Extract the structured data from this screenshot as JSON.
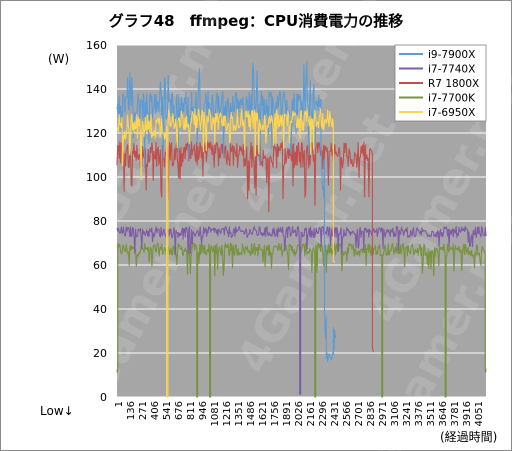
{
  "chart_data": {
    "type": "line",
    "title": "グラフ48　ffmpeg：CPU消費電力の推移",
    "ylabel": "(W)",
    "xlabel": "(経過時間)",
    "low_label": "Low↓",
    "ylim": [
      0,
      160
    ],
    "yticks": [
      0,
      20,
      40,
      60,
      80,
      100,
      120,
      140,
      160
    ],
    "x_tick_labels": [
      "1",
      "136",
      "271",
      "406",
      "541",
      "676",
      "811",
      "946",
      "1081",
      "1216",
      "1351",
      "1486",
      "1621",
      "1756",
      "1891",
      "2026",
      "2161",
      "2296",
      "2431",
      "2566",
      "2701",
      "2836",
      "2971",
      "3106",
      "3241",
      "3376",
      "3511",
      "3646",
      "3781",
      "3916",
      "4051"
    ],
    "x_range": [
      1,
      4160
    ],
    "grid": "horizontal",
    "legend_position": "top-right",
    "watermark": "4Gamer.net",
    "series": [
      {
        "name": "i9-7900X",
        "color": "#5b9bd5",
        "start": 1,
        "spike_x": [
          110,
          520,
          900,
          1560,
          2160
        ],
        "levels": [
          {
            "from": 1,
            "to": 2300,
            "mean": 132,
            "amp": 7
          },
          {
            "from": 2300,
            "to": 2340,
            "mean": 105,
            "amp": 15
          },
          {
            "from": 2340,
            "to": 2360,
            "mean": 40,
            "amp": 18
          },
          {
            "from": 2360,
            "to": 2440,
            "mean": 18,
            "amp": 2
          },
          {
            "from": 2440,
            "to": 2470,
            "mean": 26,
            "amp": 6
          }
        ]
      },
      {
        "name": "i7-7740X",
        "color": "#7e5ba6",
        "start": 1,
        "levels": [
          {
            "from": 1,
            "to": 2060,
            "mean": 75,
            "amp": 2.5
          },
          {
            "from": 2060,
            "to": 2070,
            "mean": 2,
            "amp": 1
          },
          {
            "from": 2070,
            "to": 4160,
            "mean": 75,
            "amp": 2.5
          }
        ]
      },
      {
        "name": "R7 1800X",
        "color": "#c0504d",
        "start": 1,
        "levels": [
          {
            "from": 1,
            "to": 2880,
            "mean": 110,
            "amp": 6
          },
          {
            "from": 2880,
            "to": 2890,
            "mean": 22,
            "amp": 2
          }
        ]
      },
      {
        "name": "i7-7700K",
        "color": "#77933c",
        "start": 1,
        "levels": [
          {
            "from": 1,
            "to": 10,
            "mean": 12,
            "amp": 2
          },
          {
            "from": 10,
            "to": 900,
            "mean": 67,
            "amp": 3
          },
          {
            "from": 900,
            "to": 910,
            "mean": 0,
            "amp": 0
          },
          {
            "from": 910,
            "to": 1045,
            "mean": 67,
            "amp": 3
          },
          {
            "from": 1045,
            "to": 1055,
            "mean": 0,
            "amp": 0
          },
          {
            "from": 1055,
            "to": 2230,
            "mean": 67,
            "amp": 3
          },
          {
            "from": 2230,
            "to": 2240,
            "mean": 0,
            "amp": 0
          },
          {
            "from": 2240,
            "to": 2985,
            "mean": 67,
            "amp": 3
          },
          {
            "from": 2985,
            "to": 2995,
            "mean": 0,
            "amp": 0
          },
          {
            "from": 2995,
            "to": 3700,
            "mean": 67,
            "amp": 3
          },
          {
            "from": 3700,
            "to": 3710,
            "mean": 0,
            "amp": 0
          },
          {
            "from": 3710,
            "to": 4150,
            "mean": 67,
            "amp": 3
          },
          {
            "from": 4150,
            "to": 4160,
            "mean": 12,
            "amp": 2
          }
        ]
      },
      {
        "name": "i7-6950X",
        "color": "#ffd54f",
        "start": 1,
        "levels": [
          {
            "from": 1,
            "to": 560,
            "mean": 123,
            "amp": 6
          },
          {
            "from": 560,
            "to": 575,
            "mean": 0,
            "amp": 0
          },
          {
            "from": 575,
            "to": 2440,
            "mean": 126,
            "amp": 5
          },
          {
            "from": 2440,
            "to": 2450,
            "mean": 62,
            "amp": 1
          }
        ]
      }
    ]
  }
}
